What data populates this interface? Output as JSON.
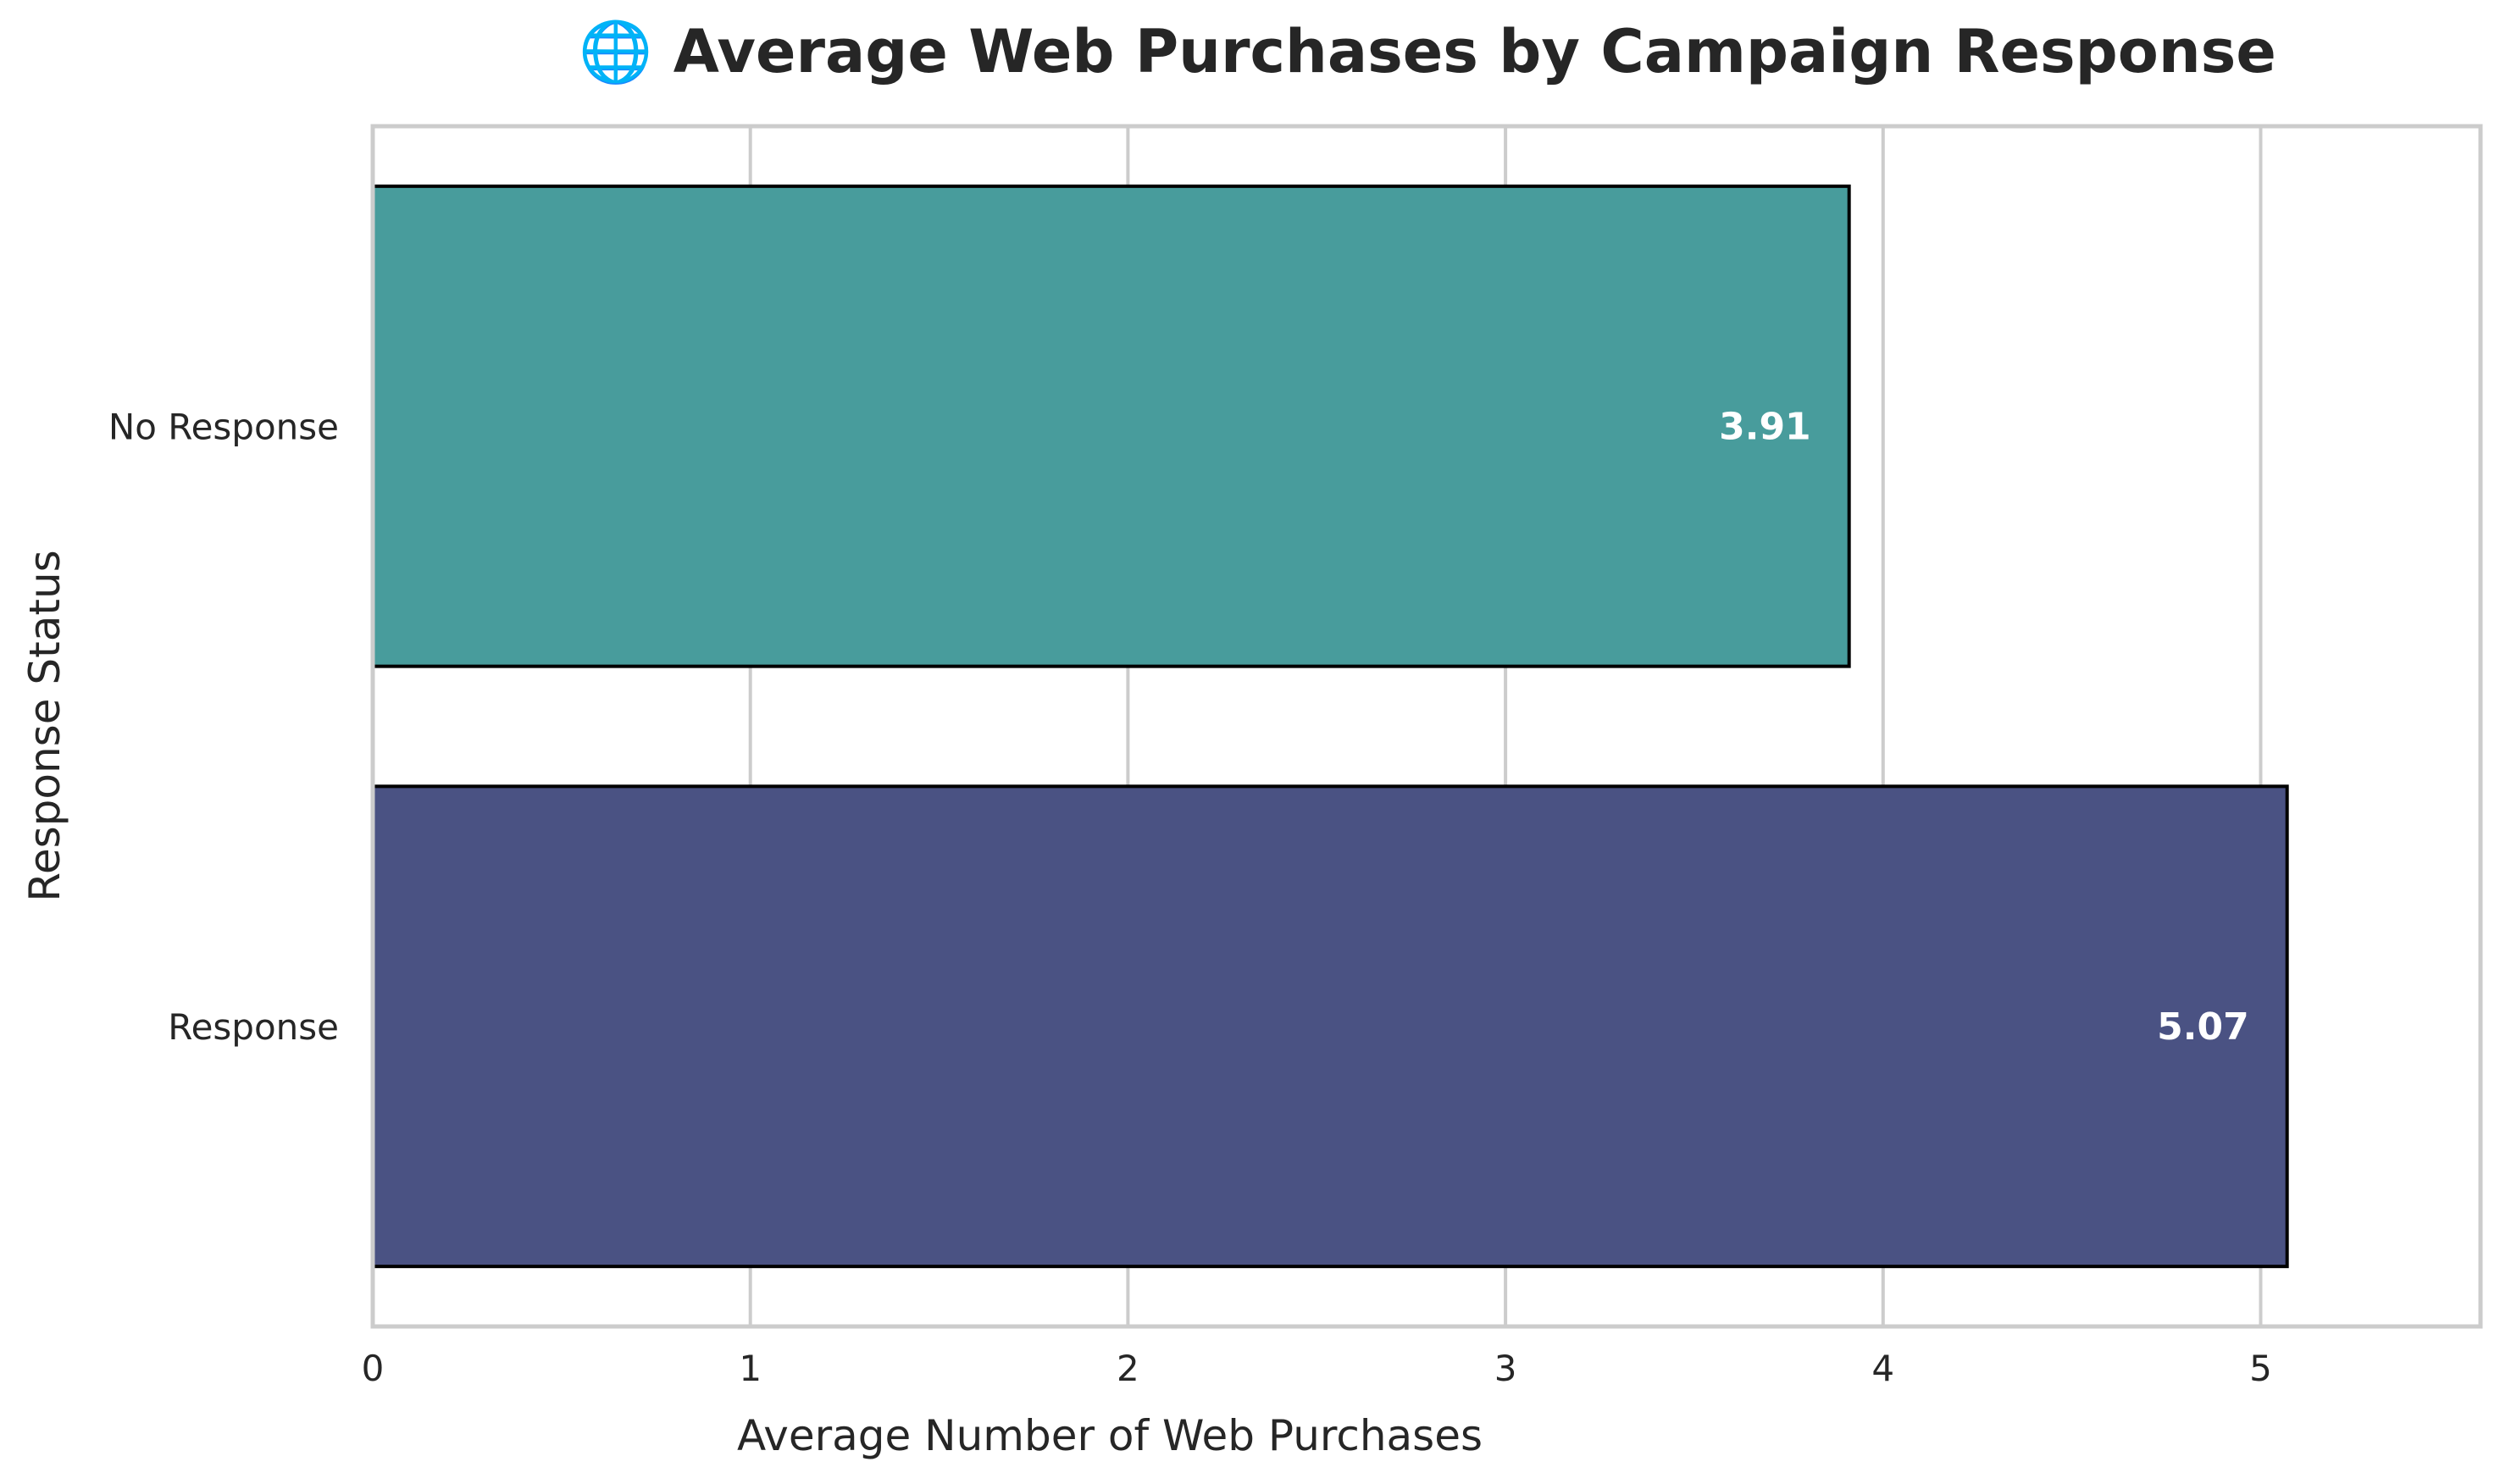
{
  "chart_data": {
    "type": "bar",
    "orientation": "horizontal",
    "title": "🌐 Average Web Purchases by Campaign Response",
    "xlabel": "Average Number of Web Purchases",
    "ylabel": "Response Status",
    "categories": [
      "No Response",
      "Response"
    ],
    "values": [
      3.91,
      5.07
    ],
    "value_labels": [
      "3.91",
      "5.07"
    ],
    "bar_colors": [
      "#489c9c",
      "#4a5283"
    ],
    "xlim": [
      0,
      5.58
    ],
    "xticks": [
      0,
      1,
      2,
      3,
      4,
      5
    ],
    "xtick_labels": [
      "0",
      "1",
      "2",
      "3",
      "4",
      "5"
    ],
    "grid": "vertical",
    "legend": "none"
  }
}
